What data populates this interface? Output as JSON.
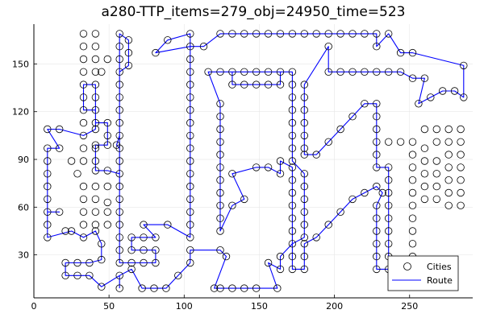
{
  "chart_data": {
    "type": "scatter",
    "title": "a280-TTP_items=279_obj=24950_time=523",
    "xlabel": "",
    "ylabel": "",
    "xlim": [
      0,
      292
    ],
    "ylim": [
      3,
      175
    ],
    "xticks": [
      0,
      50,
      100,
      150,
      200,
      250
    ],
    "yticks": [
      30,
      60,
      90,
      120,
      150
    ],
    "grid": true,
    "legend_position": "bottom-right",
    "colors": {
      "route": "#0000ff",
      "cities": "#000000"
    },
    "series": [
      {
        "name": "Cities",
        "kind": "scatter"
      },
      {
        "name": "Route",
        "kind": "line"
      }
    ],
    "route": [
      [
        57,
        9
      ],
      [
        57,
        17
      ],
      [
        45,
        10
      ],
      [
        37,
        17
      ],
      [
        29,
        17
      ],
      [
        21,
        17
      ],
      [
        21,
        25
      ],
      [
        29,
        25
      ],
      [
        37,
        25
      ],
      [
        45,
        27
      ],
      [
        45,
        37
      ],
      [
        41,
        45
      ],
      [
        33,
        41
      ],
      [
        25,
        45
      ],
      [
        9,
        41
      ],
      [
        9,
        49
      ],
      [
        9,
        57
      ],
      [
        17,
        57
      ],
      [
        9,
        57
      ],
      [
        9,
        65
      ],
      [
        9,
        73
      ],
      [
        9,
        81
      ],
      [
        9,
        89
      ],
      [
        9,
        97
      ],
      [
        17,
        97
      ],
      [
        9,
        109
      ],
      [
        17,
        109
      ],
      [
        33,
        105
      ],
      [
        41,
        109
      ],
      [
        41,
        121
      ],
      [
        33,
        121
      ],
      [
        33,
        129
      ],
      [
        33,
        137
      ],
      [
        41,
        137
      ],
      [
        41,
        129
      ],
      [
        41,
        121
      ],
      [
        41,
        113
      ],
      [
        49,
        113
      ],
      [
        49,
        105
      ],
      [
        49,
        99
      ],
      [
        41,
        99
      ],
      [
        41,
        89
      ],
      [
        41,
        83
      ],
      [
        49,
        83
      ],
      [
        57,
        81
      ],
      [
        57,
        89
      ],
      [
        57,
        97
      ],
      [
        55,
        99
      ],
      [
        57,
        105
      ],
      [
        57,
        113
      ],
      [
        57,
        121
      ],
      [
        57,
        129
      ],
      [
        57,
        137
      ],
      [
        57,
        145
      ],
      [
        57,
        153
      ],
      [
        57,
        161
      ],
      [
        57,
        169
      ],
      [
        63,
        165
      ],
      [
        63,
        157
      ],
      [
        63,
        149
      ],
      [
        57,
        145
      ],
      [
        57,
        137
      ],
      [
        57,
        129
      ],
      [
        57,
        121
      ],
      [
        57,
        113
      ],
      [
        57,
        105
      ],
      [
        57,
        97
      ],
      [
        57,
        89
      ],
      [
        57,
        81
      ],
      [
        57,
        73
      ],
      [
        57,
        65
      ],
      [
        57,
        57
      ],
      [
        57,
        49
      ],
      [
        57,
        41
      ],
      [
        57,
        33
      ],
      [
        57,
        25
      ],
      [
        65,
        25
      ],
      [
        73,
        25
      ],
      [
        81,
        25
      ],
      [
        81,
        33
      ],
      [
        73,
        33
      ],
      [
        65,
        33
      ],
      [
        65,
        41
      ],
      [
        73,
        41
      ],
      [
        81,
        41
      ],
      [
        73,
        49
      ],
      [
        89,
        49
      ],
      [
        104,
        41
      ],
      [
        104,
        49
      ],
      [
        104,
        57
      ],
      [
        104,
        65
      ],
      [
        104,
        73
      ],
      [
        104,
        81
      ],
      [
        104,
        89
      ],
      [
        104,
        97
      ],
      [
        104,
        105
      ],
      [
        104,
        113
      ],
      [
        104,
        121
      ],
      [
        104,
        129
      ],
      [
        104,
        137
      ],
      [
        104,
        145
      ],
      [
        104,
        153
      ],
      [
        104,
        161
      ],
      [
        104,
        169
      ],
      [
        89,
        165
      ],
      [
        81,
        157
      ],
      [
        104,
        161
      ],
      [
        113,
        161
      ],
      [
        124,
        169
      ],
      [
        132,
        169
      ],
      [
        140,
        169
      ],
      [
        148,
        169
      ],
      [
        156,
        169
      ],
      [
        164,
        169
      ],
      [
        172,
        169
      ],
      [
        180,
        169
      ],
      [
        188,
        169
      ],
      [
        196,
        169
      ],
      [
        204,
        169
      ],
      [
        212,
        169
      ],
      [
        220,
        169
      ],
      [
        228,
        169
      ],
      [
        228,
        161
      ],
      [
        236,
        169
      ],
      [
        244,
        157
      ],
      [
        252,
        157
      ],
      [
        286,
        149
      ],
      [
        286,
        129
      ],
      [
        280,
        133
      ],
      [
        272,
        133
      ],
      [
        264,
        129
      ],
      [
        256,
        125
      ],
      [
        260,
        141
      ],
      [
        252,
        141
      ],
      [
        244,
        145
      ],
      [
        236,
        145
      ],
      [
        228,
        145
      ],
      [
        220,
        145
      ],
      [
        212,
        145
      ],
      [
        204,
        145
      ],
      [
        196,
        145
      ],
      [
        196,
        161
      ],
      [
        180,
        137
      ],
      [
        180,
        129
      ],
      [
        180,
        121
      ],
      [
        180,
        113
      ],
      [
        180,
        105
      ],
      [
        180,
        97
      ],
      [
        180,
        93
      ],
      [
        188,
        93
      ],
      [
        196,
        101
      ],
      [
        204,
        109
      ],
      [
        212,
        117
      ],
      [
        220,
        125
      ],
      [
        228,
        125
      ],
      [
        228,
        117
      ],
      [
        228,
        109
      ],
      [
        228,
        101
      ],
      [
        228,
        93
      ],
      [
        228,
        85
      ],
      [
        236,
        85
      ],
      [
        236,
        77
      ],
      [
        236,
        69
      ],
      [
        236,
        61
      ],
      [
        236,
        53
      ],
      [
        236,
        45
      ],
      [
        236,
        37
      ],
      [
        236,
        29
      ],
      [
        236,
        21
      ],
      [
        228,
        21
      ],
      [
        228,
        29
      ],
      [
        228,
        37
      ],
      [
        228,
        45
      ],
      [
        228,
        53
      ],
      [
        228,
        61
      ],
      [
        232,
        69
      ],
      [
        228,
        73
      ],
      [
        220,
        69
      ],
      [
        212,
        65
      ],
      [
        204,
        57
      ],
      [
        196,
        49
      ],
      [
        188,
        41
      ],
      [
        180,
        37
      ],
      [
        180,
        29
      ],
      [
        180,
        21
      ],
      [
        172,
        21
      ],
      [
        172,
        29
      ],
      [
        172,
        37
      ],
      [
        172,
        45
      ],
      [
        172,
        53
      ],
      [
        172,
        61
      ],
      [
        172,
        69
      ],
      [
        172,
        77
      ],
      [
        172,
        85
      ],
      [
        164,
        89
      ],
      [
        164,
        81
      ],
      [
        156,
        85
      ],
      [
        148,
        85
      ],
      [
        132,
        81
      ],
      [
        140,
        65
      ],
      [
        132,
        61
      ],
      [
        124,
        45
      ],
      [
        124,
        53
      ],
      [
        124,
        61
      ],
      [
        124,
        69
      ],
      [
        124,
        77
      ],
      [
        124,
        85
      ],
      [
        124,
        93
      ],
      [
        124,
        101
      ],
      [
        124,
        109
      ],
      [
        124,
        117
      ],
      [
        124,
        125
      ],
      [
        116,
        145
      ],
      [
        124,
        145
      ],
      [
        132,
        145
      ],
      [
        140,
        145
      ],
      [
        148,
        145
      ],
      [
        156,
        145
      ],
      [
        164,
        145
      ],
      [
        164,
        137
      ],
      [
        156,
        137
      ],
      [
        148,
        137
      ],
      [
        140,
        137
      ],
      [
        132,
        137
      ],
      [
        132,
        145
      ],
      [
        124,
        145
      ],
      [
        172,
        145
      ],
      [
        172,
        137
      ],
      [
        172,
        129
      ],
      [
        172,
        121
      ],
      [
        172,
        113
      ],
      [
        172,
        105
      ],
      [
        172,
        97
      ],
      [
        172,
        89
      ],
      [
        180,
        81
      ],
      [
        180,
        73
      ],
      [
        180,
        65
      ],
      [
        180,
        57
      ],
      [
        180,
        49
      ],
      [
        180,
        41
      ],
      [
        172,
        37
      ],
      [
        164,
        29
      ],
      [
        164,
        21
      ],
      [
        156,
        25
      ],
      [
        162,
        9
      ],
      [
        148,
        9
      ],
      [
        140,
        9
      ],
      [
        132,
        9
      ],
      [
        124,
        9
      ],
      [
        120,
        9
      ],
      [
        128,
        29
      ],
      [
        124,
        33
      ],
      [
        104,
        33
      ],
      [
        104,
        25
      ],
      [
        96,
        17
      ],
      [
        88,
        9
      ],
      [
        80,
        9
      ],
      [
        72,
        9
      ],
      [
        65,
        21
      ],
      [
        57,
        17
      ],
      [
        57,
        9
      ]
    ],
    "extra_cities": [
      [
        236,
        101
      ],
      [
        244,
        101
      ],
      [
        252,
        101
      ],
      [
        260,
        109
      ],
      [
        268,
        109
      ],
      [
        276,
        109
      ],
      [
        284,
        109
      ],
      [
        284,
        101
      ],
      [
        284,
        93
      ],
      [
        284,
        85
      ],
      [
        284,
        77
      ],
      [
        284,
        69
      ],
      [
        284,
        61
      ],
      [
        276,
        61
      ],
      [
        276,
        69
      ],
      [
        276,
        77
      ],
      [
        276,
        85
      ],
      [
        276,
        93
      ],
      [
        276,
        101
      ],
      [
        268,
        101
      ],
      [
        260,
        97
      ],
      [
        252,
        93
      ],
      [
        252,
        85
      ],
      [
        252,
        77
      ],
      [
        252,
        69
      ],
      [
        252,
        61
      ],
      [
        252,
        53
      ],
      [
        252,
        45
      ],
      [
        252,
        37
      ],
      [
        252,
        29
      ],
      [
        260,
        89
      ],
      [
        268,
        89
      ],
      [
        268,
        81
      ],
      [
        268,
        73
      ],
      [
        268,
        65
      ],
      [
        260,
        65
      ],
      [
        260,
        73
      ],
      [
        260,
        81
      ],
      [
        21,
        45
      ],
      [
        25,
        89
      ],
      [
        33,
        89
      ],
      [
        29,
        81
      ],
      [
        33,
        73
      ],
      [
        41,
        73
      ],
      [
        49,
        73
      ],
      [
        33,
        65
      ],
      [
        41,
        65
      ],
      [
        49,
        63
      ],
      [
        33,
        57
      ],
      [
        41,
        57
      ],
      [
        49,
        57
      ],
      [
        33,
        49
      ],
      [
        41,
        49
      ],
      [
        49,
        49
      ],
      [
        41,
        97
      ],
      [
        33,
        97
      ],
      [
        33,
        113
      ],
      [
        45,
        145
      ],
      [
        33,
        145
      ],
      [
        33,
        153
      ],
      [
        33,
        161
      ],
      [
        33,
        169
      ],
      [
        41,
        169
      ],
      [
        41,
        161
      ],
      [
        41,
        153
      ],
      [
        41,
        145
      ],
      [
        49,
        153
      ]
    ]
  },
  "legend": {
    "cities_label": "Cities",
    "route_label": "Route"
  }
}
